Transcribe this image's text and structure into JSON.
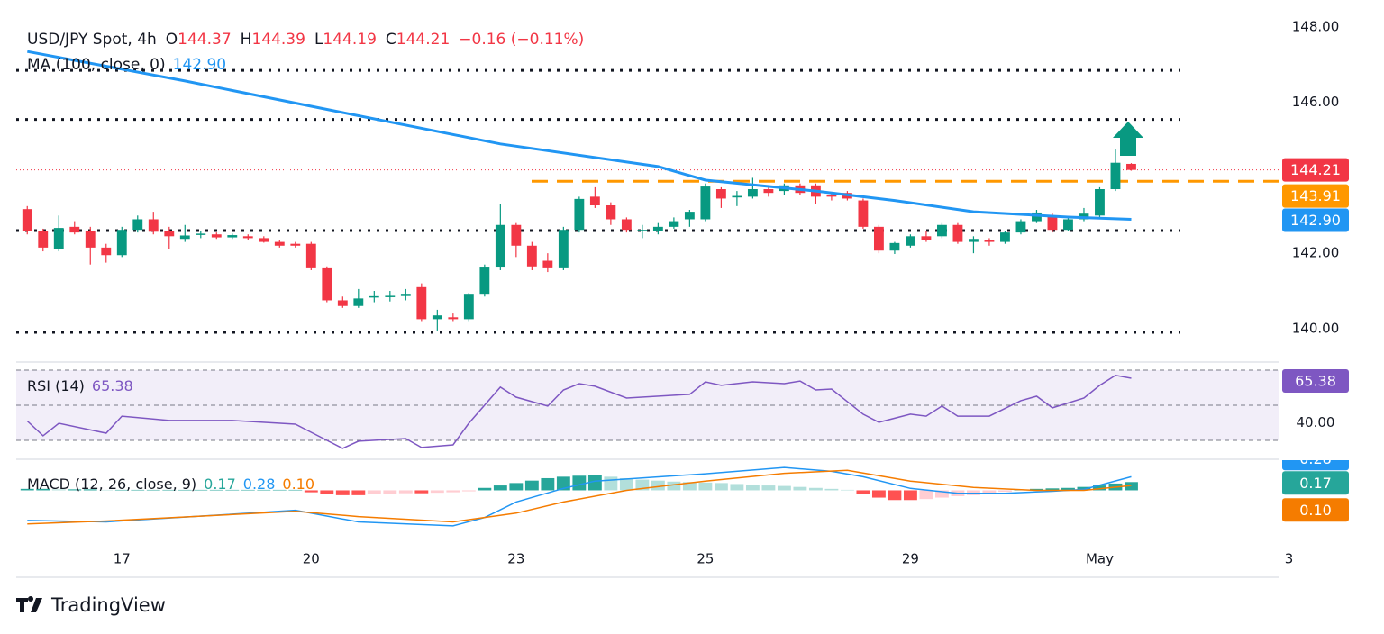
{
  "header": {
    "symbol": "USD/JPY Spot, 4h",
    "ohlc": [
      {
        "key": "O",
        "value": 144.37
      },
      {
        "key": "H",
        "value": 144.39
      },
      {
        "key": "L",
        "value": 144.19
      },
      {
        "key": "C",
        "value": 144.21
      }
    ],
    "change": "−0.16 (−0.11%)",
    "brand": "TradingView"
  },
  "chart_data": [
    {
      "type": "candlestick",
      "xlim": [
        -0.7,
        79.4
      ],
      "xticks": [
        {
          "value": 6,
          "label": "17"
        },
        {
          "value": 18,
          "label": "20"
        },
        {
          "value": 31,
          "label": "23"
        },
        {
          "value": 43,
          "label": "25"
        },
        {
          "value": 56,
          "label": "29"
        },
        {
          "value": 68,
          "label": "May"
        },
        {
          "value": 80,
          "label": "3"
        }
      ],
      "ylim": [
        139.16,
        148.24
      ],
      "yticks": [
        {
          "value": 148,
          "label": "148.00"
        },
        {
          "value": 146,
          "label": "146.00"
        },
        {
          "value": 142,
          "label": "142.00"
        },
        {
          "value": 140,
          "label": "140.00"
        }
      ],
      "up_color": "#089981",
      "down_color": "#f23645",
      "open": [
        143.17,
        142.6,
        142.12,
        142.7,
        142.6,
        142.15,
        141.95,
        142.62,
        142.9,
        142.6,
        142.38,
        142.5,
        142.5,
        142.42,
        142.45,
        142.4,
        142.3,
        142.25,
        142.25,
        141.6,
        140.75,
        140.6,
        140.84,
        140.85,
        140.88,
        141.1,
        140.25,
        140.3,
        140.25,
        140.9,
        141.62,
        142.75,
        142.2,
        141.8,
        141.6,
        142.62,
        143.5,
        143.27,
        142.9,
        142.6,
        142.6,
        142.7,
        142.9,
        142.9,
        143.7,
        143.48,
        143.5,
        143.7,
        143.65,
        143.8,
        143.8,
        143.55,
        143.6,
        143.4,
        142.7,
        142.07,
        142.2,
        142.45,
        142.45,
        142.75,
        142.3,
        142.35,
        142.3,
        142.55,
        142.85,
        143.0,
        142.62,
        142.9,
        143.0,
        143.7,
        144.37
      ],
      "high": [
        143.25,
        142.65,
        143.0,
        142.85,
        142.7,
        142.25,
        142.7,
        143.0,
        143.1,
        142.7,
        142.75,
        142.6,
        142.55,
        142.52,
        142.5,
        142.45,
        142.35,
        142.3,
        142.3,
        141.65,
        140.85,
        141.05,
        141.0,
        141.0,
        141.05,
        141.2,
        140.5,
        140.4,
        140.95,
        141.7,
        143.3,
        142.8,
        142.3,
        142.0,
        142.7,
        143.5,
        143.75,
        143.35,
        142.95,
        142.75,
        142.8,
        142.95,
        143.15,
        143.85,
        143.75,
        143.65,
        144.0,
        143.78,
        143.85,
        143.85,
        143.85,
        143.6,
        143.65,
        143.45,
        142.75,
        142.3,
        142.5,
        142.6,
        142.8,
        142.8,
        142.45,
        142.4,
        142.6,
        142.9,
        143.15,
        143.05,
        142.95,
        143.2,
        143.75,
        144.75,
        144.39
      ],
      "low": [
        142.5,
        142.05,
        142.05,
        142.5,
        141.7,
        141.75,
        141.9,
        142.55,
        142.5,
        142.1,
        142.3,
        142.4,
        142.38,
        142.38,
        142.35,
        142.28,
        142.15,
        142.15,
        141.55,
        140.7,
        140.55,
        140.55,
        140.7,
        140.72,
        140.75,
        140.2,
        139.95,
        140.2,
        140.2,
        140.85,
        141.55,
        141.9,
        141.55,
        141.5,
        141.55,
        142.55,
        143.2,
        142.75,
        142.55,
        142.4,
        142.5,
        142.65,
        142.7,
        142.85,
        143.2,
        143.25,
        143.45,
        143.5,
        143.55,
        143.55,
        143.3,
        143.4,
        143.4,
        142.65,
        142.0,
        141.98,
        142.15,
        142.3,
        142.4,
        142.25,
        142.0,
        142.2,
        142.25,
        142.5,
        142.8,
        142.55,
        142.58,
        142.85,
        142.95,
        143.65,
        144.19
      ],
      "close": [
        142.6,
        142.15,
        142.67,
        142.55,
        142.15,
        141.95,
        142.62,
        142.9,
        142.57,
        142.45,
        142.47,
        142.52,
        142.42,
        142.48,
        142.4,
        142.3,
        142.2,
        142.2,
        141.6,
        140.75,
        140.6,
        140.8,
        140.86,
        140.87,
        140.9,
        140.25,
        140.35,
        140.25,
        140.9,
        141.62,
        142.75,
        142.2,
        141.65,
        141.6,
        142.62,
        143.44,
        143.27,
        142.9,
        142.62,
        142.62,
        142.7,
        142.85,
        143.1,
        143.77,
        143.45,
        143.52,
        143.7,
        143.6,
        143.8,
        143.6,
        143.5,
        143.5,
        143.45,
        142.7,
        142.07,
        142.27,
        142.45,
        142.35,
        142.75,
        142.3,
        142.38,
        142.3,
        142.55,
        142.85,
        143.08,
        142.62,
        142.9,
        143.05,
        143.7,
        144.4,
        144.21
      ],
      "ma": {
        "name": "MA (100, close, 0)",
        "color": "#2196f3",
        "value": {
          "value": 142.9,
          "label": "142.90"
        },
        "x": [
          0,
          10,
          20,
          30,
          40,
          43,
          50,
          55,
          60,
          66,
          70
        ],
        "values": [
          147.35,
          146.57,
          145.73,
          144.9,
          144.3,
          143.94,
          143.65,
          143.4,
          143.1,
          142.96,
          142.9
        ]
      },
      "levels": [
        146.85,
        145.55,
        142.6,
        139.9
      ],
      "resistance": {
        "value": 143.91,
        "label": "143.91",
        "color": "#ff9800"
      }
    },
    {
      "type": "rsi",
      "name": "RSI (14)",
      "value": 65.38,
      "color": "#7e57c2",
      "ylim": [
        19.2,
        74.1
      ],
      "yticks": [
        {
          "value": 40,
          "label": "40.00"
        }
      ],
      "levels": [
        70,
        50,
        30
      ],
      "x": [
        0,
        1,
        2,
        5,
        6,
        9,
        13,
        17,
        18,
        20,
        21,
        24,
        25,
        27,
        28,
        30,
        31,
        33,
        34,
        35,
        36,
        38,
        42,
        43,
        44,
        46,
        48,
        49,
        50,
        51,
        53,
        54,
        56,
        57,
        58,
        59,
        61,
        63,
        64,
        65,
        67,
        68,
        69,
        70
      ],
      "values": [
        41,
        32.6,
        39.7,
        34.1,
        43.8,
        41.3,
        41.3,
        39.2,
        34.6,
        25.4,
        29.5,
        31,
        25.9,
        27.4,
        39.7,
        60.3,
        54.6,
        49.5,
        58.7,
        62.3,
        60.8,
        54.1,
        56.2,
        63.3,
        61.3,
        63.3,
        62.3,
        63.8,
        58.7,
        59.2,
        44.9,
        40.3,
        44.9,
        43.8,
        49.5,
        43.8,
        43.8,
        52.6,
        55.1,
        48.5,
        54.1,
        61.3,
        67,
        65.38
      ]
    },
    {
      "type": "macd",
      "name": "MACD (12, 26, close, 9)",
      "ylim": [
        -1.77,
        0.62
      ],
      "histogram": {
        "value": 0.17,
        "colors": [
          "#26a69a",
          "#b2dfdb",
          "#ff5252",
          "#ffcdd2"
        ],
        "values": [
          0.03,
          0.03,
          0.02,
          0.02,
          0.02,
          0.01,
          0.01,
          0.01,
          0.01,
          0.01,
          0.01,
          0.01,
          0.01,
          0.01,
          0.01,
          0.01,
          0.01,
          0.01,
          -0.04,
          -0.08,
          -0.1,
          -0.1,
          -0.08,
          -0.07,
          -0.06,
          -0.06,
          -0.05,
          -0.04,
          -0.02,
          0.05,
          0.1,
          0.15,
          0.2,
          0.25,
          0.28,
          0.3,
          0.32,
          0.28,
          0.25,
          0.22,
          0.2,
          0.18,
          0.17,
          0.16,
          0.15,
          0.13,
          0.12,
          0.1,
          0.09,
          0.07,
          0.05,
          0.03,
          0.01,
          -0.08,
          -0.15,
          -0.2,
          -0.2,
          -0.18,
          -0.15,
          -0.12,
          -0.1,
          -0.06,
          -0.03,
          0.01,
          0.03,
          0.04,
          0.05,
          0.07,
          0.1,
          0.14,
          0.17
        ]
      },
      "macd": {
        "value": 0.28,
        "color": "#2196f3",
        "x": [
          0,
          5,
          17,
          18,
          21,
          27,
          29,
          31,
          34,
          36,
          43,
          48,
          51,
          53,
          56,
          59,
          62,
          65,
          67,
          70
        ],
        "values": [
          -0.62,
          -0.65,
          -0.41,
          -0.47,
          -0.65,
          -0.73,
          -0.56,
          -0.24,
          0.04,
          0.19,
          0.34,
          0.47,
          0.39,
          0.28,
          0.04,
          -0.06,
          -0.06,
          -0.02,
          0.02,
          0.28
        ]
      },
      "signal": {
        "value": {
          "value": 0.1,
          "label": "0.10"
        },
        "color": "#f57c00",
        "x": [
          0,
          5,
          17,
          21,
          27,
          31,
          34,
          38,
          43,
          48,
          52,
          56,
          60,
          64,
          67,
          70
        ],
        "values": [
          -0.69,
          -0.63,
          -0.43,
          -0.54,
          -0.65,
          -0.47,
          -0.24,
          0,
          0.19,
          0.35,
          0.41,
          0.19,
          0.06,
          0,
          0,
          0.1
        ]
      }
    }
  ]
}
